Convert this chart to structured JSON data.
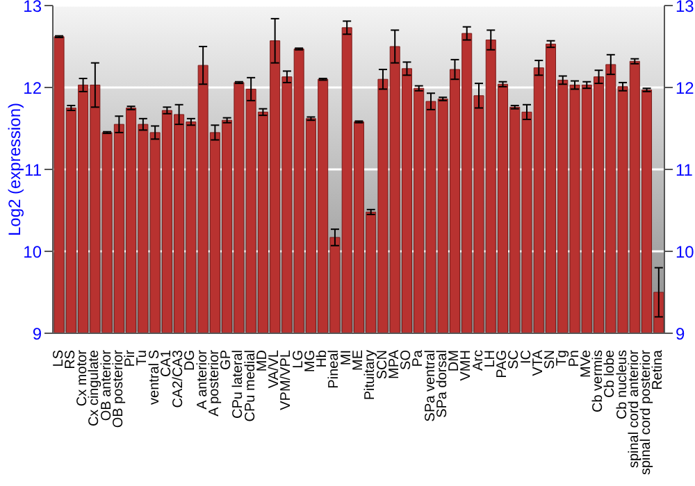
{
  "chart_data": {
    "type": "bar",
    "ylabel": "Log2 (expression)",
    "categories": [
      "LS",
      "RS",
      "Cx motor",
      "Cx cingulate",
      "OB anterior",
      "OB posterior",
      "Pir",
      "Tu",
      "ventral S",
      "CA1",
      "CA2/CA3",
      "DG",
      "A anterior",
      "A posterior",
      "GP",
      "CPu lateral",
      "CPu medial",
      "MD",
      "VA/VL",
      "VPM/VPL",
      "LG",
      "MG",
      "Hb",
      "Pineal",
      "MI",
      "ME",
      "Pituitary",
      "SCN",
      "MPA",
      "SO",
      "Pa",
      "SPa ventral",
      "SPa dorsal",
      "DM",
      "VMH",
      "Arc",
      "LH",
      "PAG",
      "SC",
      "IC",
      "VTA",
      "SN",
      "Tg",
      "Pn",
      "MVe",
      "Cb vermis",
      "Cb lobe",
      "Cb nucleus",
      "spinal cord anterior",
      "spinal cord posterior",
      "Retina"
    ],
    "values": [
      12.62,
      11.75,
      12.03,
      12.03,
      11.45,
      11.55,
      11.75,
      11.55,
      11.45,
      11.72,
      11.67,
      11.58,
      12.27,
      11.45,
      11.6,
      12.06,
      11.98,
      11.7,
      12.57,
      12.13,
      12.47,
      11.62,
      12.1,
      10.17,
      12.73,
      11.58,
      10.48,
      12.1,
      12.5,
      12.23,
      11.99,
      11.83,
      11.86,
      12.22,
      12.66,
      11.9,
      12.58,
      12.04,
      11.76,
      11.7,
      12.24,
      12.53,
      12.09,
      12.03,
      12.03,
      12.13,
      12.28,
      12.01,
      12.32,
      11.97,
      9.5
    ],
    "errors": [
      0.01,
      0.03,
      0.08,
      0.27,
      0.01,
      0.1,
      0.02,
      0.07,
      0.08,
      0.04,
      0.12,
      0.04,
      0.23,
      0.09,
      0.03,
      0.01,
      0.14,
      0.04,
      0.27,
      0.07,
      0.01,
      0.02,
      0.01,
      0.1,
      0.08,
      0.01,
      0.03,
      0.12,
      0.2,
      0.08,
      0.03,
      0.1,
      0.02,
      0.12,
      0.08,
      0.15,
      0.12,
      0.03,
      0.02,
      0.09,
      0.09,
      0.04,
      0.05,
      0.05,
      0.04,
      0.08,
      0.12,
      0.05,
      0.03,
      0.02,
      0.3
    ],
    "color": "#b83230",
    "ylim": [
      9,
      13
    ],
    "yticks": [
      9,
      10,
      11,
      12,
      13
    ],
    "y2lim": [
      9,
      13
    ],
    "y2ticks": [
      9,
      10,
      11,
      12,
      13
    ],
    "grid": "y"
  }
}
